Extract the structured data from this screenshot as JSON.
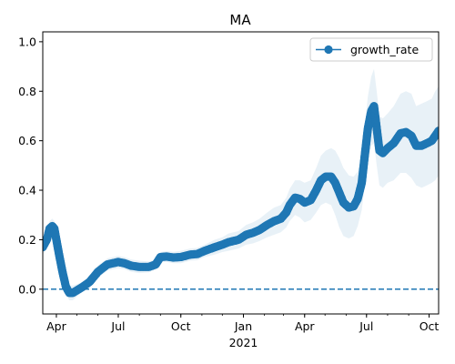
{
  "chart_data": {
    "type": "line",
    "title": "MA",
    "xlabel": "",
    "ylabel": "",
    "xlim": [
      "2020-03-12",
      "2021-10-15"
    ],
    "ylim": [
      -0.1,
      1.04
    ],
    "x_tick_labels": [
      {
        "date": "2020-04-01",
        "label": "Apr"
      },
      {
        "date": "2020-07-01",
        "label": "Jul"
      },
      {
        "date": "2020-10-01",
        "label": "Oct"
      },
      {
        "date": "2021-01-01",
        "label": "Jan"
      },
      {
        "date": "2021-04-01",
        "label": "Apr"
      },
      {
        "date": "2021-07-01",
        "label": "Jul"
      },
      {
        "date": "2021-10-01",
        "label": "Oct"
      }
    ],
    "x_year_label": {
      "date": "2021-01-01",
      "label": "2021"
    },
    "y_ticks": [
      0.0,
      0.2,
      0.4,
      0.6,
      0.8,
      1.0
    ],
    "y_tick_labels": [
      "0.0",
      "0.2",
      "0.4",
      "0.6",
      "0.8",
      "1.0"
    ],
    "reference_line": {
      "y": 0.0,
      "style": "dashed",
      "color": "#1f77b4"
    },
    "legend": {
      "position": "top-right",
      "entries": [
        "growth_rate"
      ]
    },
    "series": [
      {
        "name": "growth_rate",
        "color": "#1f77b4",
        "band_color": "#1f77b4",
        "band_opacity": 0.1,
        "x": [
          "2020-03-12",
          "2020-03-18",
          "2020-03-22",
          "2020-03-26",
          "2020-03-29",
          "2020-04-01",
          "2020-04-05",
          "2020-04-10",
          "2020-04-15",
          "2020-04-20",
          "2020-04-25",
          "2020-05-01",
          "2020-05-10",
          "2020-05-20",
          "2020-06-01",
          "2020-06-15",
          "2020-07-01",
          "2020-07-10",
          "2020-07-20",
          "2020-08-01",
          "2020-08-15",
          "2020-08-25",
          "2020-09-01",
          "2020-09-10",
          "2020-09-20",
          "2020-10-01",
          "2020-10-15",
          "2020-10-25",
          "2020-11-05",
          "2020-11-20",
          "2020-12-01",
          "2020-12-10",
          "2020-12-25",
          "2021-01-05",
          "2021-01-15",
          "2021-01-25",
          "2021-02-05",
          "2021-02-15",
          "2021-02-25",
          "2021-03-05",
          "2021-03-10",
          "2021-03-18",
          "2021-03-25",
          "2021-04-01",
          "2021-04-10",
          "2021-04-18",
          "2021-04-25",
          "2021-05-02",
          "2021-05-10",
          "2021-05-16",
          "2021-05-22",
          "2021-05-28",
          "2021-06-05",
          "2021-06-12",
          "2021-06-18",
          "2021-06-24",
          "2021-06-28",
          "2021-07-03",
          "2021-07-08",
          "2021-07-12",
          "2021-07-16",
          "2021-07-20",
          "2021-07-25",
          "2021-08-01",
          "2021-08-10",
          "2021-08-20",
          "2021-08-28",
          "2021-09-05",
          "2021-09-12",
          "2021-09-20",
          "2021-09-28",
          "2021-10-05",
          "2021-10-10",
          "2021-10-15"
        ],
        "values": [
          0.17,
          0.2,
          0.245,
          0.255,
          0.245,
          0.2,
          0.14,
          0.07,
          0.01,
          -0.015,
          -0.015,
          -0.005,
          0.01,
          0.03,
          0.07,
          0.1,
          0.11,
          0.105,
          0.095,
          0.09,
          0.09,
          0.1,
          0.13,
          0.132,
          0.128,
          0.13,
          0.14,
          0.142,
          0.155,
          0.17,
          0.18,
          0.19,
          0.2,
          0.22,
          0.228,
          0.24,
          0.26,
          0.275,
          0.285,
          0.31,
          0.34,
          0.37,
          0.365,
          0.35,
          0.36,
          0.4,
          0.44,
          0.455,
          0.455,
          0.43,
          0.39,
          0.35,
          0.33,
          0.335,
          0.365,
          0.43,
          0.53,
          0.65,
          0.72,
          0.74,
          0.65,
          0.56,
          0.55,
          0.57,
          0.59,
          0.63,
          0.635,
          0.62,
          0.58,
          0.58,
          0.59,
          0.6,
          0.62,
          0.64
        ],
        "lower": [
          0.14,
          0.17,
          0.215,
          0.225,
          0.215,
          0.17,
          0.11,
          0.04,
          -0.02,
          -0.045,
          -0.045,
          -0.03,
          -0.01,
          0.01,
          0.045,
          0.075,
          0.085,
          0.08,
          0.07,
          0.065,
          0.068,
          0.08,
          0.11,
          0.11,
          0.105,
          0.105,
          0.115,
          0.117,
          0.13,
          0.14,
          0.15,
          0.155,
          0.165,
          0.18,
          0.185,
          0.195,
          0.21,
          0.22,
          0.23,
          0.25,
          0.275,
          0.3,
          0.29,
          0.27,
          0.28,
          0.31,
          0.34,
          0.35,
          0.34,
          0.3,
          0.25,
          0.215,
          0.205,
          0.215,
          0.255,
          0.32,
          0.41,
          0.52,
          0.58,
          0.59,
          0.5,
          0.42,
          0.41,
          0.43,
          0.44,
          0.47,
          0.47,
          0.45,
          0.42,
          0.41,
          0.42,
          0.43,
          0.44,
          0.46
        ],
        "upper": [
          0.2,
          0.23,
          0.275,
          0.285,
          0.275,
          0.23,
          0.17,
          0.1,
          0.04,
          0.015,
          0.015,
          0.02,
          0.03,
          0.05,
          0.095,
          0.125,
          0.135,
          0.13,
          0.12,
          0.115,
          0.112,
          0.12,
          0.15,
          0.154,
          0.151,
          0.155,
          0.165,
          0.167,
          0.18,
          0.2,
          0.21,
          0.225,
          0.235,
          0.26,
          0.27,
          0.285,
          0.31,
          0.33,
          0.34,
          0.37,
          0.405,
          0.44,
          0.44,
          0.43,
          0.44,
          0.49,
          0.54,
          0.56,
          0.57,
          0.56,
          0.53,
          0.49,
          0.46,
          0.455,
          0.475,
          0.54,
          0.65,
          0.78,
          0.86,
          0.89,
          0.8,
          0.7,
          0.69,
          0.71,
          0.74,
          0.79,
          0.8,
          0.79,
          0.74,
          0.75,
          0.76,
          0.77,
          0.8,
          0.82
        ]
      }
    ]
  }
}
